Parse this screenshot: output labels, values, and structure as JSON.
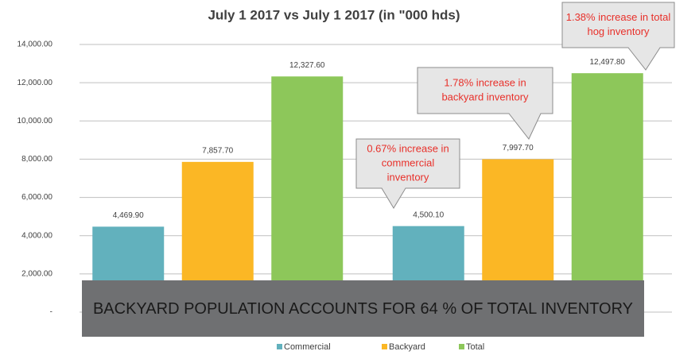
{
  "chart_data": {
    "type": "bar",
    "title": "July 1 2017 vs July 1 2017 (in \"000 hds)",
    "categories": [
      null,
      null
    ],
    "series": [
      {
        "name": "Commercial",
        "color": "#62b1bd",
        "values": [
          4469.9,
          4500.1
        ],
        "value_labels": [
          "4,469.90",
          "4,500.10"
        ]
      },
      {
        "name": "Backyard",
        "color": "#fbb725",
        "values": [
          7857.7,
          7997.7
        ],
        "value_labels": [
          "7,857.70",
          "7,997.70"
        ]
      },
      {
        "name": "Total",
        "color": "#8dc75a",
        "values": [
          12327.6,
          12497.8
        ],
        "value_labels": [
          "12,327.60",
          "12,497.80"
        ]
      }
    ],
    "ylim": [
      0,
      14000
    ],
    "yticks": [
      {
        "value": 0,
        "label": "-"
      },
      {
        "value": 2000,
        "label": "2,000.00"
      },
      {
        "value": 4000,
        "label": "4,000.00"
      },
      {
        "value": 6000,
        "label": "6,000.00"
      },
      {
        "value": 8000,
        "label": "8,000.00"
      },
      {
        "value": 10000,
        "label": "10,000.00"
      },
      {
        "value": 12000,
        "label": "12,000.00"
      },
      {
        "value": 14000,
        "label": "14,000.00"
      }
    ],
    "grid": true,
    "legend": "bottom",
    "annotations": [
      {
        "lines": [
          "0.67% increase in",
          "commercial",
          "inventory"
        ]
      },
      {
        "lines": [
          "1.78% increase in",
          "backyard inventory"
        ]
      },
      {
        "lines": [
          "1.38% increase in total",
          "hog inventory"
        ]
      }
    ],
    "banner": "BACKYARD POPULATION ACCOUNTS FOR 64 % OF TOTAL INVENTORY"
  }
}
